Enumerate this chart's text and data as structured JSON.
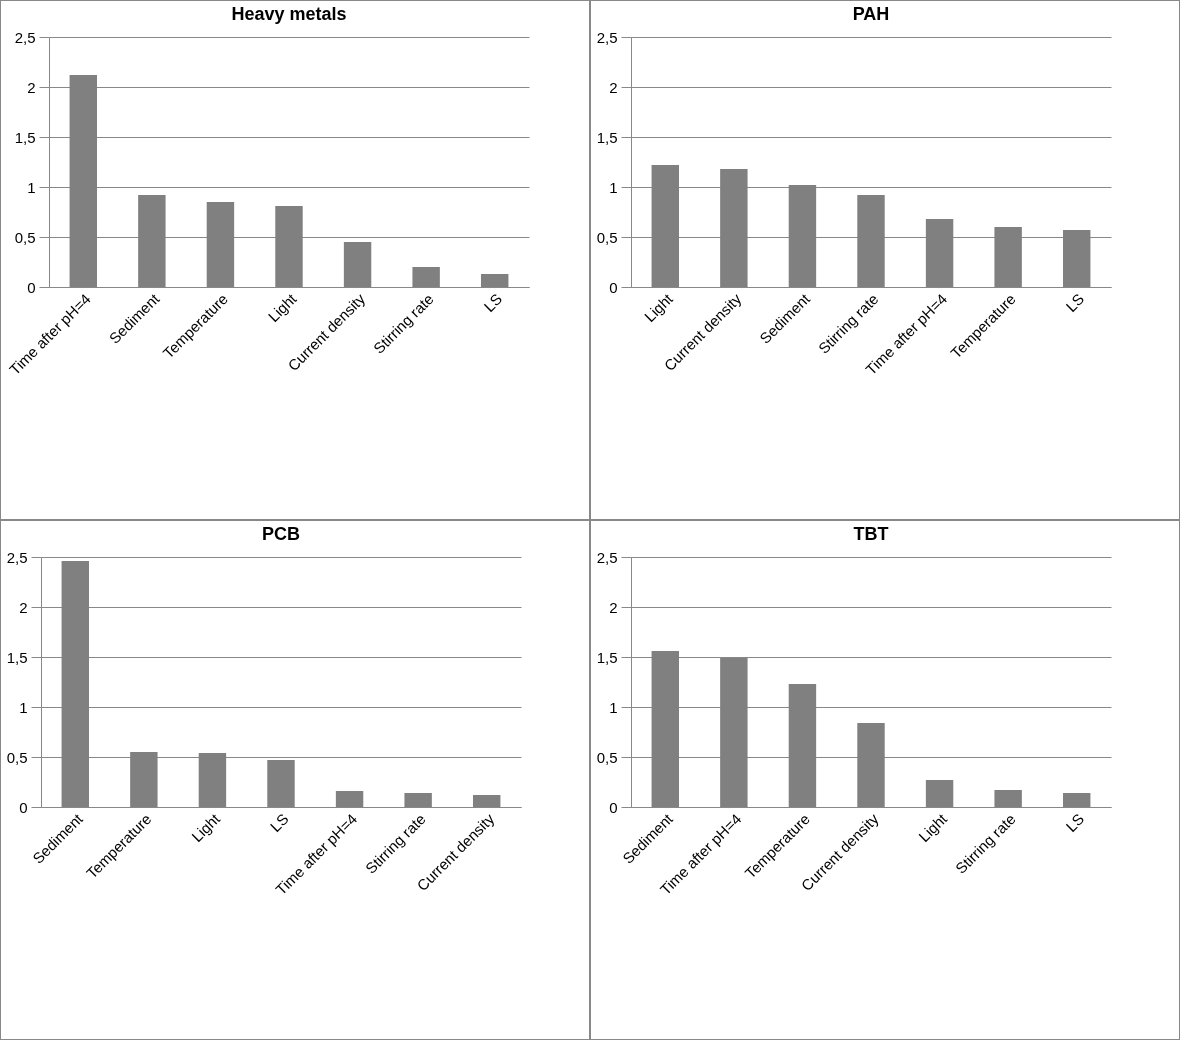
{
  "chart_data": [
    {
      "type": "bar",
      "title": "Heavy metals",
      "categories": [
        "Time after pH=4",
        "Sediment",
        "Temperature",
        "Light",
        "Current density",
        "Stirring rate",
        "LS"
      ],
      "values": [
        2.12,
        0.92,
        0.85,
        0.81,
        0.45,
        0.2,
        0.13
      ],
      "color": "#808080",
      "ylim": [
        0,
        2.5
      ],
      "yticks": [
        0,
        {
          "value": 0.5,
          "label": "0,5"
        },
        1,
        {
          "value": 1.5,
          "label": "1,5"
        },
        2,
        {
          "value": 2.5,
          "label": "2,5"
        }
      ],
      "grid": "y"
    },
    {
      "type": "bar",
      "title": "PAH",
      "categories": [
        "Light",
        "Current density",
        "Sediment",
        "Stirring rate",
        "Time after pH=4",
        "Temperature",
        "LS"
      ],
      "values": [
        1.22,
        1.18,
        1.02,
        0.92,
        0.68,
        0.6,
        0.57
      ],
      "color": "#808080",
      "ylim": [
        0,
        2.5
      ],
      "yticks": [
        0,
        {
          "value": 0.5,
          "label": "0,5"
        },
        1,
        {
          "value": 1.5,
          "label": "1,5"
        },
        2,
        {
          "value": 2.5,
          "label": "2,5"
        }
      ],
      "grid": "y"
    },
    {
      "type": "bar",
      "title": "PCB",
      "categories": [
        "Sediment",
        "Temperature",
        "Light",
        "LS",
        "Time after pH=4",
        "Stirring rate",
        "Current density"
      ],
      "values": [
        2.46,
        0.55,
        0.54,
        0.47,
        0.16,
        0.14,
        0.12
      ],
      "color": "#808080",
      "ylim": [
        0,
        2.5
      ],
      "yticks": [
        0,
        {
          "value": 0.5,
          "label": "0,5"
        },
        1,
        {
          "value": 1.5,
          "label": "1,5"
        },
        2,
        {
          "value": 2.5,
          "label": "2,5"
        }
      ],
      "grid": "y"
    },
    {
      "type": "bar",
      "title": "TBT",
      "categories": [
        "Sediment",
        "Time after pH=4",
        "Temperature",
        "Current density",
        "Light",
        "Stirring rate",
        "LS"
      ],
      "values": [
        1.56,
        1.49,
        1.23,
        0.84,
        0.27,
        0.17,
        0.14
      ],
      "color": "#808080",
      "ylim": [
        0,
        2.5
      ],
      "yticks": [
        0,
        {
          "value": 0.5,
          "label": "0,5"
        },
        1,
        {
          "value": 1.5,
          "label": "1,5"
        },
        2,
        {
          "value": 2.5,
          "label": "2,5"
        }
      ],
      "grid": "y"
    }
  ]
}
